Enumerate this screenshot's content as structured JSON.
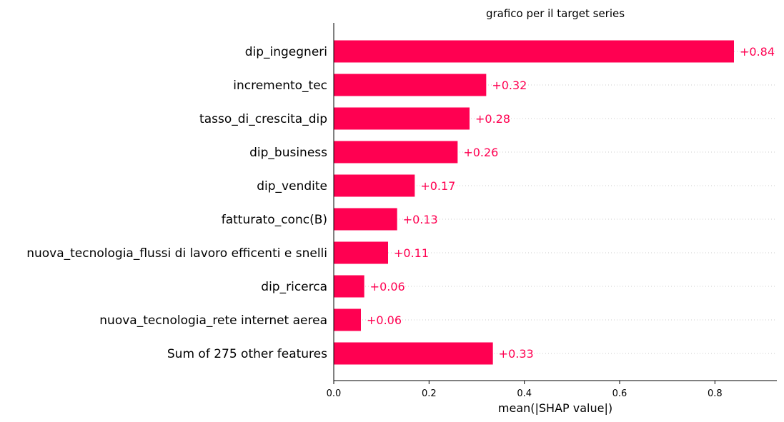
{
  "chart_data": {
    "type": "bar",
    "orientation": "horizontal",
    "title": "grafico per il target series",
    "xlabel": "mean(|SHAP value|)",
    "ylabel": "",
    "categories": [
      "dip_ingegneri",
      "incremento_tec",
      "tasso_di_crescita_dip",
      "dip_business",
      "dip_vendite",
      "fatturato_conc(B)",
      "nuova_tecnologia_flussi di lavoro efficenti e snelli",
      "dip_ricerca",
      "nuova_tecnologia_rete internet aerea",
      "Sum of 275 other features"
    ],
    "values": [
      0.84,
      0.32,
      0.285,
      0.26,
      0.17,
      0.133,
      0.114,
      0.064,
      0.057,
      0.334
    ],
    "value_labels": [
      "+0.84",
      "+0.32",
      "+0.28",
      "+0.26",
      "+0.17",
      "+0.13",
      "+0.11",
      "+0.06",
      "+0.06",
      "+0.33"
    ],
    "xlim": [
      0,
      0.93
    ],
    "xticks": [
      0.0,
      0.2,
      0.4,
      0.6,
      0.8
    ],
    "xtick_labels": [
      "0.0",
      "0.2",
      "0.4",
      "0.6",
      "0.8"
    ],
    "bar_color": "#ff0051",
    "grid": "dotted horizontal lines per row",
    "legend": "none"
  }
}
